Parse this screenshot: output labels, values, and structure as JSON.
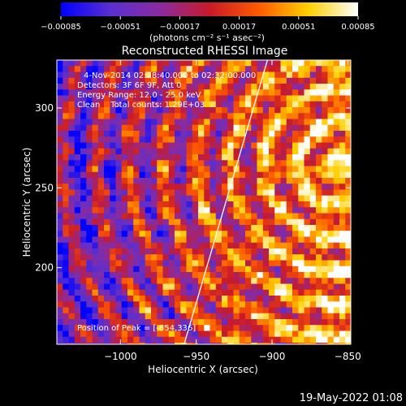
{
  "colorbar": {
    "ticks": [
      "-0.00085",
      "-0.00051",
      "-0.00017",
      "0.00017",
      "0.00051",
      "0.00085"
    ],
    "range": [
      -0.00085,
      0.00085
    ],
    "colormap": [
      "#0000ff",
      "#5a2fd0",
      "#8a2ba0",
      "#c81a2a",
      "#ff5a00",
      "#ffd000",
      "#ffffff"
    ]
  },
  "chart_data": {
    "type": "heatmap",
    "title": "Reconstructed RHESSI Image",
    "units": "(photons cm⁻² s⁻¹ asec⁻²)",
    "xlabel": "Heliocentric X (arcsec)",
    "ylabel": "Heliocentric Y (arcsec)",
    "xlim": [
      -1042,
      -848
    ],
    "ylim": [
      152,
      330
    ],
    "x_ticks": [
      -1000,
      -950,
      -900,
      -850
    ],
    "x_tick_labels": [
      "−1000",
      "−950",
      "−900",
      "−850"
    ],
    "y_ticks": [
      200,
      250,
      300
    ],
    "y_tick_labels": [
      "200",
      "250",
      "300"
    ],
    "annotations": [
      "4-Nov-2014 02:28:40.000 to 02:32:00.000",
      "Detectors: 3F 6F 9F, Att 0",
      "Energy Range: 12.0 - 25.0 keV",
      "Clean    Total counts: 1.29E+03"
    ],
    "peak_label": "Position of Peak = [-854,336]",
    "peak": [
      -854,
      336
    ],
    "limb_line": [
      [
        -958,
        152
      ],
      [
        -903,
        330
      ]
    ]
  },
  "footer": {
    "date": "19-May-2022 01:08"
  }
}
